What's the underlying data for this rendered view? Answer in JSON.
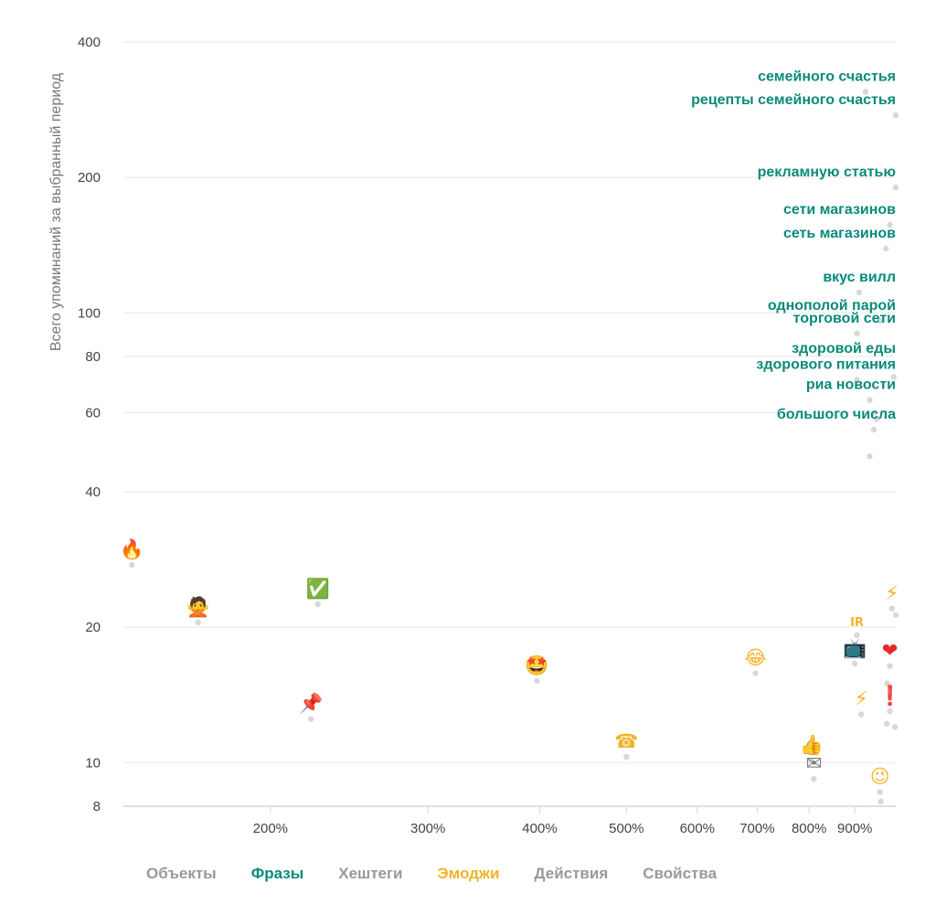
{
  "chart_data": {
    "type": "scatter",
    "title": "",
    "xlabel": "",
    "ylabel": "Всего упоминаний за выбранный период",
    "x_scale": "log",
    "y_scale": "log",
    "xlim": [
      137,
      1000
    ],
    "ylim": [
      8,
      400
    ],
    "x_ticks": [
      {
        "value": 200,
        "label": "200%"
      },
      {
        "value": 300,
        "label": "300%"
      },
      {
        "value": 400,
        "label": "400%"
      },
      {
        "value": 500,
        "label": "500%"
      },
      {
        "value": 600,
        "label": "600%"
      },
      {
        "value": 700,
        "label": "700%"
      },
      {
        "value": 800,
        "label": "800%"
      },
      {
        "value": 900,
        "label": "900%"
      }
    ],
    "y_ticks": [
      {
        "value": 8,
        "label": "8"
      },
      {
        "value": 10,
        "label": "10"
      },
      {
        "value": 20,
        "label": "20"
      },
      {
        "value": 40,
        "label": "40"
      },
      {
        "value": 60,
        "label": "60"
      },
      {
        "value": 80,
        "label": "80"
      },
      {
        "value": 100,
        "label": "100"
      },
      {
        "value": 200,
        "label": "200"
      },
      {
        "value": 400,
        "label": "400"
      }
    ],
    "phrases": [
      {
        "label": "семейного счастья",
        "x": 925,
        "y": 310
      },
      {
        "label": "рецепты семейного счастья",
        "x": 1000,
        "y": 275
      },
      {
        "label": "рекламную статью",
        "x": 1000,
        "y": 190
      },
      {
        "label": "сети магазинов",
        "x": 985,
        "y": 157
      },
      {
        "label": "сеть магазинов",
        "x": 975,
        "y": 139
      },
      {
        "label": "вкус вилл",
        "x": 910,
        "y": 111
      },
      {
        "label": "однополой парой",
        "x": 960,
        "y": 96
      },
      {
        "label": "торговой сети",
        "x": 905,
        "y": 90
      },
      {
        "label": "здоровой еды",
        "x": 955,
        "y": 77
      },
      {
        "label": "здорового питания",
        "x": 905,
        "y": 71
      },
      {
        "label": "риа новости",
        "x": 935,
        "y": 64
      },
      {
        "label": "большого числа",
        "x": 945,
        "y": 55
      }
    ],
    "emojis": [
      {
        "name": "fire",
        "glyph": "🔥",
        "color": "#f26b1d",
        "x": 140,
        "y": 27.5
      },
      {
        "name": "woman-gesturing-no",
        "glyph": "🙅",
        "color": "#9d7fd6",
        "x": 166,
        "y": 20.5
      },
      {
        "name": "check-mark-button",
        "glyph": "✅",
        "color": "#2fb62f",
        "x": 226,
        "y": 22.5
      },
      {
        "name": "pushpin",
        "glyph": "📌",
        "color": "#d9362a",
        "x": 222,
        "y": 12.5
      },
      {
        "name": "star-struck",
        "glyph": "🤩",
        "color": "#f7b52c",
        "x": 397,
        "y": 15.2
      },
      {
        "name": "telephone",
        "glyph": "☎",
        "color": "#f0b429",
        "x": 500,
        "y": 10.3
      },
      {
        "name": "tears-of-joy",
        "glyph": "😂",
        "color": "#f7b52c",
        "x": 697,
        "y": 15.8
      },
      {
        "name": "thumbs-up",
        "glyph": "👍",
        "color": "#f0b429",
        "x": 805,
        "y": 10.1
      },
      {
        "name": "envelope",
        "glyph": "✉",
        "color": "#777777",
        "x": 810,
        "y": 9.2
      },
      {
        "name": "television",
        "glyph": "📺",
        "color": "#555555",
        "x": 900,
        "y": 16.6
      },
      {
        "name": "ir-text",
        "glyph": "IR",
        "color": "#f0b429",
        "x": 905,
        "y": 19.2
      },
      {
        "name": "high-voltage",
        "glyph": "⚡",
        "color": "#f0b429",
        "x": 915,
        "y": 12.8
      },
      {
        "name": "high-voltage",
        "glyph": "⚡",
        "color": "#f0b429",
        "x": 990,
        "y": 22.0
      },
      {
        "name": "red-heart",
        "glyph": "❤",
        "color": "#e8262d",
        "x": 985,
        "y": 16.4
      },
      {
        "name": "exclamation-mark",
        "glyph": "❗",
        "color": "#e8262d",
        "x": 985,
        "y": 13.0
      },
      {
        "name": "winking-face",
        "glyph": "😉",
        "color": "#f7b52c",
        "x": 960,
        "y": 8.6
      }
    ],
    "background_points": [
      {
        "x": 948,
        "y": 60
      },
      {
        "x": 952,
        "y": 58
      },
      {
        "x": 995,
        "y": 72
      },
      {
        "x": 978,
        "y": 15
      },
      {
        "x": 977,
        "y": 12.2
      },
      {
        "x": 998,
        "y": 12.0
      },
      {
        "x": 962,
        "y": 8.2
      },
      {
        "x": 935,
        "y": 48
      },
      {
        "x": 1000,
        "y": 21.3
      }
    ],
    "colors": {
      "phrase": "#0a8a7a",
      "emoji": "#f0b429",
      "point": "#d8d8d8",
      "grid": "#e8e8e8",
      "axis": "#c9d6ea"
    }
  },
  "legend": [
    {
      "id": "objects",
      "label": "Объекты",
      "color": "#999999"
    },
    {
      "id": "phrases",
      "label": "Фразы",
      "color": "#0a8a7a"
    },
    {
      "id": "hashtags",
      "label": "Хештеги",
      "color": "#999999"
    },
    {
      "id": "emojis",
      "label": "Эмоджи",
      "color": "#f0b429"
    },
    {
      "id": "actions",
      "label": "Действия",
      "color": "#999999"
    },
    {
      "id": "properties",
      "label": "Свойства",
      "color": "#999999"
    }
  ]
}
